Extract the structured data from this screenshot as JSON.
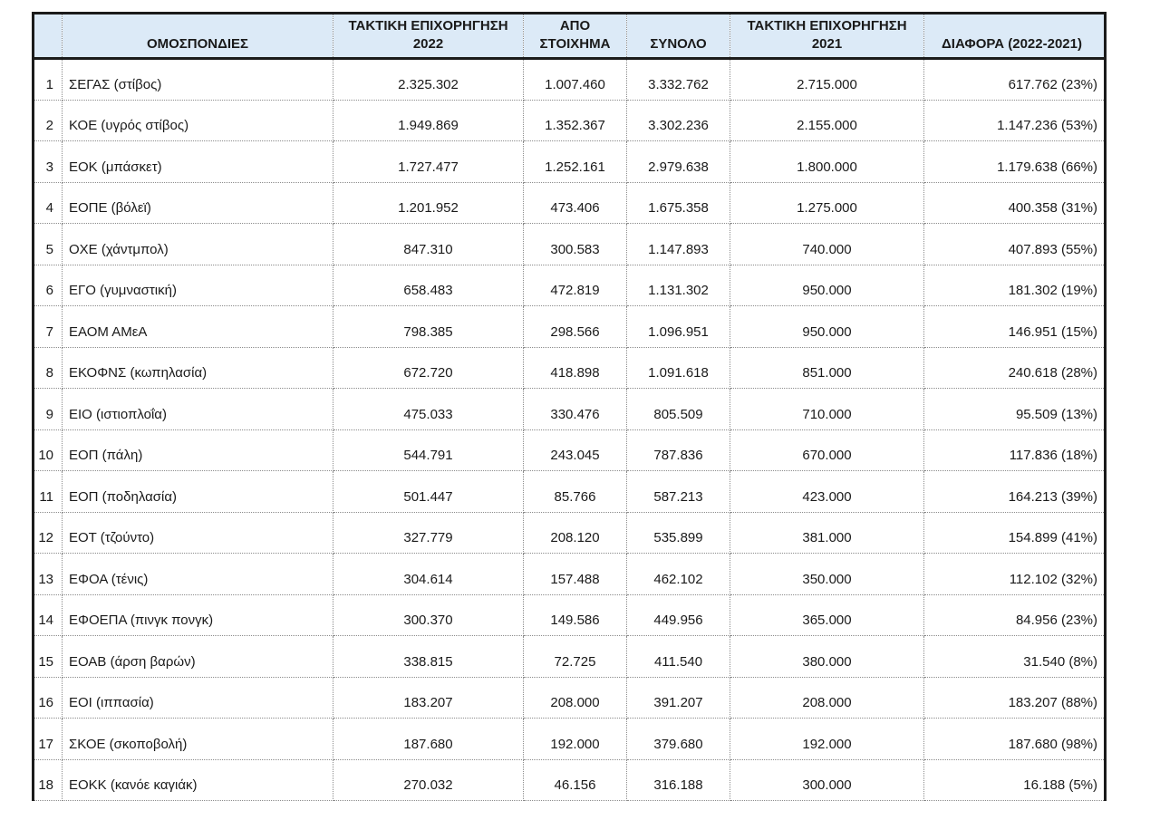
{
  "page": {
    "background": "#ffffff"
  },
  "table": {
    "header_bg": "#dceaf7",
    "frame_color": "#1b1b1b",
    "grid_color": "#8c8c8c",
    "headers": {
      "num": "",
      "federation": "ΟΜΟΣΠΟΝΔΙΕΣ",
      "grant_2022": "ΤΑΚΤΙΚΗ ΕΠΙΧΟΡΗΓΗΣΗ\n2022",
      "betting": "ΑΠΟ\nΣΤΟΙΧΗΜΑ",
      "total": "ΣΥΝΟΛΟ",
      "grant_2021": "ΤΑΚΤΙΚΗ ΕΠΙΧΟΡΗΓΗΣΗ\n2021",
      "difference": "ΔΙΑΦΟΡΑ (2022-2021)"
    },
    "rows": [
      {
        "num": "1",
        "federation": "ΣΕΓΑΣ (στίβος)",
        "grant_2022": "2.325.302",
        "betting": "1.007.460",
        "total": "3.332.762",
        "grant_2021": "2.715.000",
        "difference": "617.762 (23%)"
      },
      {
        "num": "2",
        "federation": "ΚΟΕ (υγρός στίβος)",
        "grant_2022": "1.949.869",
        "betting": "1.352.367",
        "total": "3.302.236",
        "grant_2021": "2.155.000",
        "difference": "1.147.236 (53%)"
      },
      {
        "num": "3",
        "federation": "ΕΟΚ (μπάσκετ)",
        "grant_2022": "1.727.477",
        "betting": "1.252.161",
        "total": "2.979.638",
        "grant_2021": "1.800.000",
        "difference": "1.179.638 (66%)"
      },
      {
        "num": "4",
        "federation": "ΕΟΠΕ (βόλεϊ)",
        "grant_2022": "1.201.952",
        "betting": "473.406",
        "total": "1.675.358",
        "grant_2021": "1.275.000",
        "difference": "400.358 (31%)"
      },
      {
        "num": "5",
        "federation": "ΟΧΕ (χάντμπολ)",
        "grant_2022": "847.310",
        "betting": "300.583",
        "total": "1.147.893",
        "grant_2021": "740.000",
        "difference": "407.893 (55%)"
      },
      {
        "num": "6",
        "federation": "ΕΓΟ (γυμναστική)",
        "grant_2022": "658.483",
        "betting": "472.819",
        "total": "1.131.302",
        "grant_2021": "950.000",
        "difference": "181.302 (19%)"
      },
      {
        "num": "7",
        "federation": "ΕΑΟΜ ΑΜεΑ",
        "grant_2022": "798.385",
        "betting": "298.566",
        "total": "1.096.951",
        "grant_2021": "950.000",
        "difference": "146.951 (15%)"
      },
      {
        "num": "8",
        "federation": "ΕΚΟΦΝΣ (κωπηλασία)",
        "grant_2022": "672.720",
        "betting": "418.898",
        "total": "1.091.618",
        "grant_2021": "851.000",
        "difference": "240.618 (28%)"
      },
      {
        "num": "9",
        "federation": "ΕΙΟ (ιστιοπλοΐα)",
        "grant_2022": "475.033",
        "betting": "330.476",
        "total": "805.509",
        "grant_2021": "710.000",
        "difference": "95.509 (13%)"
      },
      {
        "num": "10",
        "federation": "ΕΟΠ (πάλη)",
        "grant_2022": "544.791",
        "betting": "243.045",
        "total": "787.836",
        "grant_2021": "670.000",
        "difference": "117.836 (18%)"
      },
      {
        "num": "11",
        "federation": "ΕΟΠ (ποδηλασία)",
        "grant_2022": "501.447",
        "betting": "85.766",
        "total": "587.213",
        "grant_2021": "423.000",
        "difference": "164.213 (39%)"
      },
      {
        "num": "12",
        "federation": "ΕΟΤ (τζούντο)",
        "grant_2022": "327.779",
        "betting": "208.120",
        "total": "535.899",
        "grant_2021": "381.000",
        "difference": "154.899 (41%)"
      },
      {
        "num": "13",
        "federation": "ΕΦΟΑ (τένις)",
        "grant_2022": "304.614",
        "betting": "157.488",
        "total": "462.102",
        "grant_2021": "350.000",
        "difference": "112.102 (32%)"
      },
      {
        "num": "14",
        "federation": "ΕΦΟΕΠΑ (πινγκ πονγκ)",
        "grant_2022": "300.370",
        "betting": "149.586",
        "total": "449.956",
        "grant_2021": "365.000",
        "difference": "84.956 (23%)"
      },
      {
        "num": "15",
        "federation": "ΕΟΑΒ (άρση βαρών)",
        "grant_2022": "338.815",
        "betting": "72.725",
        "total": "411.540",
        "grant_2021": "380.000",
        "difference": "31.540 (8%)"
      },
      {
        "num": "16",
        "federation": "ΕΟΙ (ιππασία)",
        "grant_2022": "183.207",
        "betting": "208.000",
        "total": "391.207",
        "grant_2021": "208.000",
        "difference": "183.207 (88%)"
      },
      {
        "num": "17",
        "federation": "ΣΚΟΕ (σκοποβολή)",
        "grant_2022": "187.680",
        "betting": "192.000",
        "total": "379.680",
        "grant_2021": "192.000",
        "difference": "187.680 (98%)"
      },
      {
        "num": "18",
        "federation": "ΕΟΚΚ (κανόε καγιάκ)",
        "grant_2022": "270.032",
        "betting": "46.156",
        "total": "316.188",
        "grant_2021": "300.000",
        "difference": "16.188 (5%)"
      }
    ]
  }
}
